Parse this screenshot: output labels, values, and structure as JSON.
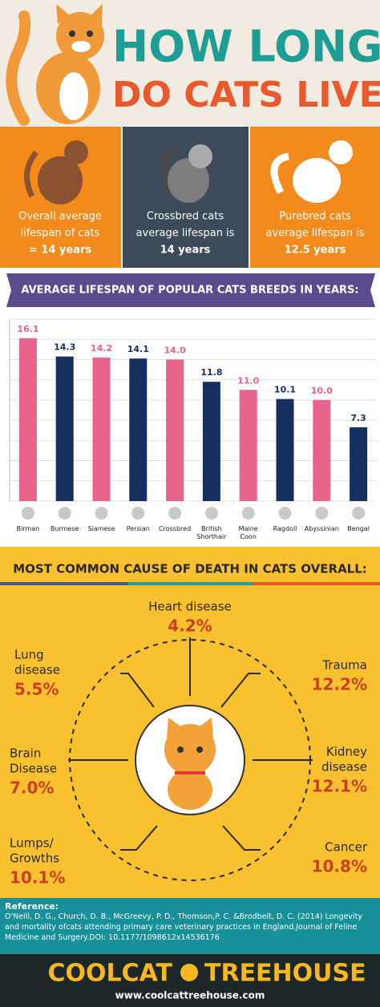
{
  "header": {
    "title_line1": "HOW LONG",
    "title_line2": "DO CATS LIVE?"
  },
  "stats": [
    {
      "lines": [
        "Overall average",
        "lifespan of cats",
        "= 14 years"
      ]
    },
    {
      "lines": [
        "Crossbred cats",
        "average lifespan is",
        "14 years"
      ]
    },
    {
      "lines": [
        "Purebred cats",
        "average lifespan is",
        "12.5 years"
      ]
    }
  ],
  "chart_data": {
    "type": "bar",
    "title": "AVERAGE LIFESPAN OF POPULAR CATS BREEDS IN YEARS:",
    "categories": [
      "Birman",
      "Burmese",
      "Siamese",
      "Persian",
      "Crossbred",
      "British Shorthair",
      "Maine Coon",
      "Ragdoll",
      "Abyssinian",
      "Bengal"
    ],
    "values": [
      16.1,
      14.3,
      14.2,
      14.1,
      14.0,
      11.8,
      11.0,
      10.1,
      10.0,
      7.3
    ],
    "value_labels": [
      "16.1",
      "14.3",
      "14.2",
      "14.1",
      "14.0",
      "11.8",
      "11.0",
      "10.1",
      "10.0",
      "7.3"
    ],
    "colors": [
      "#e9648c",
      "#15305f",
      "#e9648c",
      "#15305f",
      "#e9648c",
      "#15305f",
      "#e9648c",
      "#15305f",
      "#e9648c",
      "#15305f"
    ],
    "ylim": [
      0,
      18
    ],
    "yticks": [
      0,
      2,
      4,
      6,
      8,
      10,
      12,
      14,
      16,
      18
    ],
    "grid": true
  },
  "causes": {
    "title": "MOST COMMON CAUSE OF DEATH IN CATS OVERALL:",
    "items": [
      {
        "name": [
          "Heart disease"
        ],
        "value": "4.2%"
      },
      {
        "name": [
          "Lung",
          "disease"
        ],
        "value": "5.5%"
      },
      {
        "name": [
          "Trauma"
        ],
        "value": "12.2%"
      },
      {
        "name": [
          "Brain",
          "Disease"
        ],
        "value": "7.0%"
      },
      {
        "name": [
          "Kidney",
          "disease"
        ],
        "value": "12.1%"
      },
      {
        "name": [
          "Lumps/",
          "Growths"
        ],
        "value": "10.1%"
      },
      {
        "name": [
          "Cancer"
        ],
        "value": "10.8%"
      }
    ]
  },
  "reference": {
    "heading": "Reference:",
    "text": "O'Neill, D. G., Church, D. B., McGreevy, P. D., Thomson,P. C. &Brodbelt, D. C. (2014) Longevity and mortality ofcats attending primary care veterinary practices in England.Journal of Feline Medicine and Surgery.DOI: 10.1177/1098612x14536176"
  },
  "footer": {
    "brand_left": "COOLCAT",
    "brand_right": "TREEHOUSE",
    "url": "www.coolcattreehouse.com"
  }
}
